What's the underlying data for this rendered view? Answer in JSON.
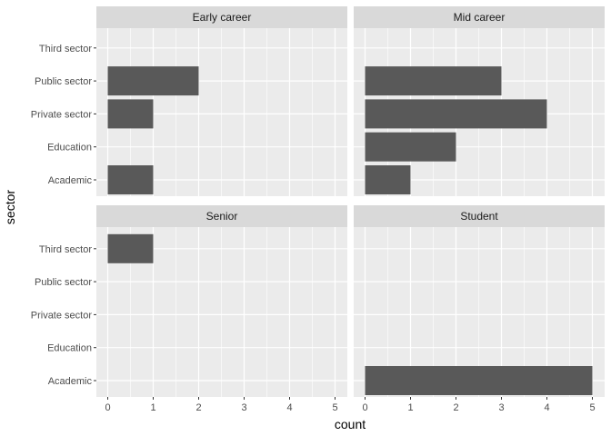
{
  "chart_data": {
    "type": "bar",
    "orientation": "horizontal",
    "xlabel": "count",
    "ylabel": "sector",
    "categories": [
      "Academic",
      "Education",
      "Private sector",
      "Public sector",
      "Third sector"
    ],
    "xlim": [
      0,
      5
    ],
    "xticks": [
      0,
      1,
      2,
      3,
      4,
      5
    ],
    "grid": true,
    "colors": {
      "panel_bg": "#ebebeb",
      "strip_bg": "#d9d9d9",
      "bar": "#595959",
      "grid": "#ffffff"
    },
    "facets": [
      {
        "label": "Early career",
        "values": [
          1,
          0,
          1,
          2,
          0
        ]
      },
      {
        "label": "Mid career",
        "values": [
          1,
          2,
          4,
          3,
          0
        ]
      },
      {
        "label": "Senior",
        "values": [
          0,
          0,
          0,
          0,
          1
        ]
      },
      {
        "label": "Student",
        "values": [
          5,
          0,
          0,
          0,
          0
        ]
      }
    ]
  }
}
